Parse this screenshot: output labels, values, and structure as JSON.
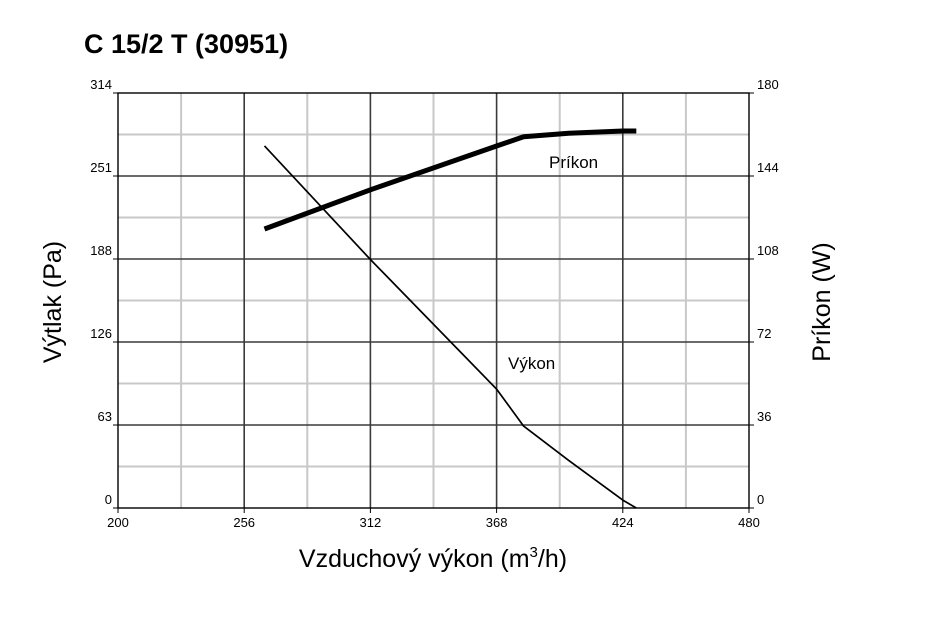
{
  "chart_data": {
    "type": "line",
    "title": "C 15/2 T (30951)",
    "xlabel_main": "Vzduchový výkon (m",
    "xlabel_sup": "3",
    "xlabel_end": "/h)",
    "ylabel_left": "Výtlak (Pa)",
    "ylabel_right": "Príkon (W)",
    "x_ticks": [
      "200",
      "256",
      "312",
      "368",
      "424",
      "480"
    ],
    "y_left_ticks": [
      "0",
      "63",
      "126",
      "188",
      "251",
      "314"
    ],
    "y_right_ticks": [
      "0",
      "36",
      "72",
      "108",
      "144",
      "180"
    ],
    "xlim": [
      200,
      480
    ],
    "ylim_left": [
      0,
      314
    ],
    "ylim_right": [
      0,
      180
    ],
    "grid": true,
    "series": [
      {
        "name": "Príkon",
        "axis": "right",
        "x": [
          265,
          312,
          368,
          380,
          400,
          424,
          430
        ],
        "y": [
          121,
          138,
          157,
          161,
          162.5,
          163.5,
          163.5
        ]
      },
      {
        "name": "Výkon",
        "axis": "left",
        "x": [
          265,
          312,
          368,
          380,
          400,
          424,
          430
        ],
        "y": [
          274,
          188,
          90,
          62,
          36,
          6,
          0
        ]
      }
    ]
  }
}
